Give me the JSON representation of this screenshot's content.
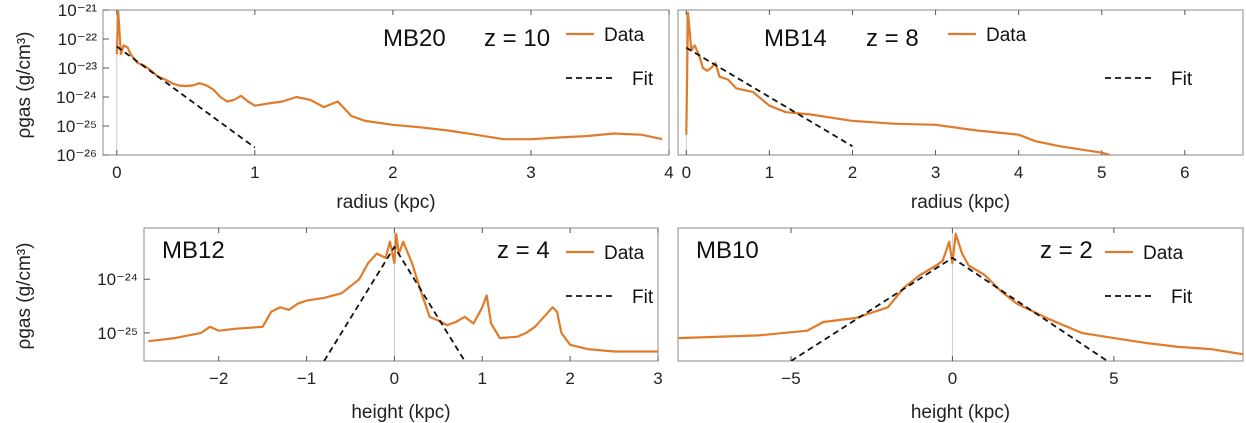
{
  "colors": {
    "data": "#e07b2a",
    "fit": "#111111",
    "frame": "#8a8a8a"
  },
  "chart_data": [
    {
      "type": "line",
      "panel_label": "MB20",
      "redshift_label": "z = 10",
      "xlabel": "radius (kpc)",
      "ylabel": "ρgas (g/cm³)",
      "yscale": "log",
      "xlim": [
        -0.1,
        4.0
      ],
      "ylim": [
        1e-26,
        1e-21
      ],
      "xticks": [
        0,
        1,
        2,
        3,
        4
      ],
      "xtick_labels": [
        "0",
        "1",
        "2",
        "3",
        "4"
      ],
      "yticks": [
        1e-26,
        1e-25,
        1e-24,
        1e-23,
        1e-22,
        1e-21
      ],
      "ytick_labels": [
        "10⁻²⁶",
        "10⁻²⁵",
        "10⁻²⁴",
        "10⁻²³",
        "10⁻²²",
        "10⁻²¹"
      ],
      "legend": [
        "Data",
        "Fit"
      ],
      "series": [
        {
          "name": "Data",
          "style": "solid",
          "x": [
            0.0,
            0.01,
            0.02,
            0.03,
            0.05,
            0.08,
            0.1,
            0.15,
            0.2,
            0.25,
            0.3,
            0.35,
            0.4,
            0.45,
            0.5,
            0.55,
            0.6,
            0.65,
            0.7,
            0.75,
            0.8,
            0.85,
            0.9,
            0.95,
            1.0,
            1.1,
            1.2,
            1.3,
            1.4,
            1.5,
            1.6,
            1.7,
            1.8,
            2.0,
            2.2,
            2.4,
            2.6,
            2.8,
            3.0,
            3.2,
            3.4,
            3.6,
            3.8,
            3.95
          ],
          "y": [
            3e-23,
            9e-22,
            1.5e-22,
            3e-23,
            6e-23,
            5e-23,
            3e-23,
            1.5e-23,
            1.2e-23,
            8e-24,
            5e-24,
            4e-24,
            3e-24,
            2.5e-24,
            2.4e-24,
            2.5e-24,
            3e-24,
            2.5e-24,
            1.8e-24,
            1e-24,
            7e-25,
            8e-25,
            1.1e-24,
            7e-25,
            5e-25,
            6e-25,
            7e-25,
            1e-24,
            8e-25,
            4.5e-25,
            7e-25,
            2.2e-25,
            1.5e-25,
            1.1e-25,
            9e-26,
            7e-26,
            5e-26,
            3.5e-26,
            3.5e-26,
            4e-26,
            4.5e-26,
            5.5e-26,
            5e-26,
            3.5e-26
          ]
        },
        {
          "name": "Fit",
          "style": "dashed",
          "x": [
            0.0,
            1.0
          ],
          "y": [
            5.5e-23,
            1.8e-26
          ]
        }
      ]
    },
    {
      "type": "line",
      "panel_label": "MB14",
      "redshift_label": "z = 8",
      "xlabel": "radius (kpc)",
      "ylabel": "",
      "yscale": "log",
      "xlim": [
        -0.1,
        6.7
      ],
      "ylim": [
        1e-26,
        1e-21
      ],
      "xticks": [
        0,
        1,
        2,
        3,
        4,
        5,
        6
      ],
      "xtick_labels": [
        "0",
        "1",
        "2",
        "3",
        "4",
        "5",
        "6"
      ],
      "yticks": [],
      "ytick_labels": [],
      "legend": [
        "Data",
        "Fit"
      ],
      "series": [
        {
          "name": "Data",
          "style": "solid",
          "x": [
            0.0,
            0.02,
            0.04,
            0.06,
            0.1,
            0.15,
            0.2,
            0.25,
            0.3,
            0.35,
            0.4,
            0.5,
            0.6,
            0.8,
            1.0,
            1.2,
            1.5,
            2.0,
            2.5,
            3.0,
            3.5,
            4.0,
            4.2,
            4.5,
            5.0,
            5.1
          ],
          "y": [
            5e-26,
            8e-22,
            2e-22,
            4e-23,
            6e-23,
            3e-23,
            1e-23,
            8e-24,
            1e-23,
            1.5e-23,
            5e-24,
            4e-24,
            2e-24,
            1.5e-24,
            5e-25,
            3e-25,
            2.5e-25,
            1.5e-25,
            1.2e-25,
            1.1e-25,
            7e-26,
            5e-26,
            3e-26,
            2e-26,
            1.2e-26,
            1e-26
          ]
        },
        {
          "name": "Fit",
          "style": "dashed",
          "x": [
            0.0,
            2.0
          ],
          "y": [
            5e-23,
            2e-26
          ]
        }
      ]
    },
    {
      "type": "line",
      "panel_label": "MB12",
      "redshift_label": "z = 4",
      "xlabel": "height (kpc)",
      "ylabel": "ρgas (g/cm³)",
      "yscale": "log",
      "xlim": [
        -2.85,
        3.0
      ],
      "ylim": [
        3e-26,
        9e-24
      ],
      "xticks": [
        -2,
        -1,
        0,
        1,
        2,
        3
      ],
      "xtick_labels": [
        "−2",
        "−1",
        "0",
        "1",
        "2",
        "3"
      ],
      "yticks": [
        1e-25,
        1e-24
      ],
      "ytick_labels": [
        "10⁻²⁵",
        "10⁻²⁴"
      ],
      "legend": [
        "Data",
        "Fit"
      ],
      "series": [
        {
          "name": "Data",
          "style": "solid",
          "x": [
            -2.8,
            -2.5,
            -2.2,
            -2.1,
            -2.0,
            -1.8,
            -1.5,
            -1.4,
            -1.3,
            -1.2,
            -1.1,
            -1.0,
            -0.8,
            -0.6,
            -0.4,
            -0.3,
            -0.2,
            -0.1,
            -0.05,
            0.0,
            0.02,
            0.05,
            0.1,
            0.2,
            0.3,
            0.4,
            0.5,
            0.6,
            0.7,
            0.8,
            0.9,
            1.0,
            1.05,
            1.1,
            1.2,
            1.4,
            1.5,
            1.6,
            1.8,
            1.85,
            1.9,
            2.0,
            2.2,
            2.5,
            3.0
          ],
          "y": [
            7e-26,
            8e-26,
            1e-25,
            1.3e-25,
            1.1e-25,
            1.2e-25,
            1.3e-25,
            2.5e-25,
            3e-25,
            2.7e-25,
            3.5e-25,
            4e-25,
            4.5e-25,
            5.5e-25,
            1e-24,
            2e-24,
            3e-24,
            2.5e-24,
            5e-24,
            2e-24,
            7e-24,
            3e-24,
            5e-24,
            2e-24,
            6e-25,
            2e-25,
            1.7e-25,
            1.4e-25,
            1.6e-25,
            2e-25,
            1.5e-25,
            3e-25,
            5e-25,
            1.5e-25,
            8e-26,
            8.5e-26,
            1e-25,
            1.3e-25,
            3e-25,
            2.5e-25,
            1e-25,
            6e-26,
            5e-26,
            4.5e-26,
            4.5e-26
          ]
        },
        {
          "name": "Fit",
          "style": "dashed",
          "x": [
            -0.8,
            0.0,
            0.8
          ],
          "y": [
            3e-26,
            4e-24,
            3e-26
          ]
        }
      ]
    },
    {
      "type": "line",
      "panel_label": "MB10",
      "redshift_label": "z = 2",
      "xlabel": "height (kpc)",
      "ylabel": "",
      "yscale": "log",
      "xlim": [
        -8.5,
        9.0
      ],
      "ylim": [
        3e-26,
        9e-24
      ],
      "xticks": [
        -5,
        0,
        5
      ],
      "xtick_labels": [
        "−5",
        "0",
        "5"
      ],
      "yticks": [],
      "ytick_labels": [],
      "legend": [
        "Data",
        "Fit"
      ],
      "series": [
        {
          "name": "Data",
          "style": "solid",
          "x": [
            -8.5,
            -6,
            -4.5,
            -4,
            -3,
            -2,
            -1.5,
            -1,
            -0.5,
            -0.3,
            -0.1,
            0,
            0.1,
            0.3,
            0.5,
            1,
            1.5,
            2,
            3,
            4,
            5,
            6,
            7,
            8,
            9
          ],
          "y": [
            8e-26,
            9e-26,
            1.1e-25,
            1.6e-25,
            1.9e-25,
            3e-25,
            7e-25,
            1.2e-24,
            1.8e-24,
            2.2e-24,
            5e-24,
            2e-24,
            7e-24,
            3e-24,
            1.8e-24,
            1.2e-24,
            6e-25,
            3.5e-25,
            1.8e-25,
            1e-25,
            8e-26,
            6.5e-26,
            5.5e-26,
            5e-26,
            4e-26
          ]
        },
        {
          "name": "Fit",
          "style": "dashed",
          "x": [
            -5.0,
            0.0,
            4.8
          ],
          "y": [
            3e-26,
            2.5e-24,
            3e-26
          ]
        }
      ]
    }
  ]
}
